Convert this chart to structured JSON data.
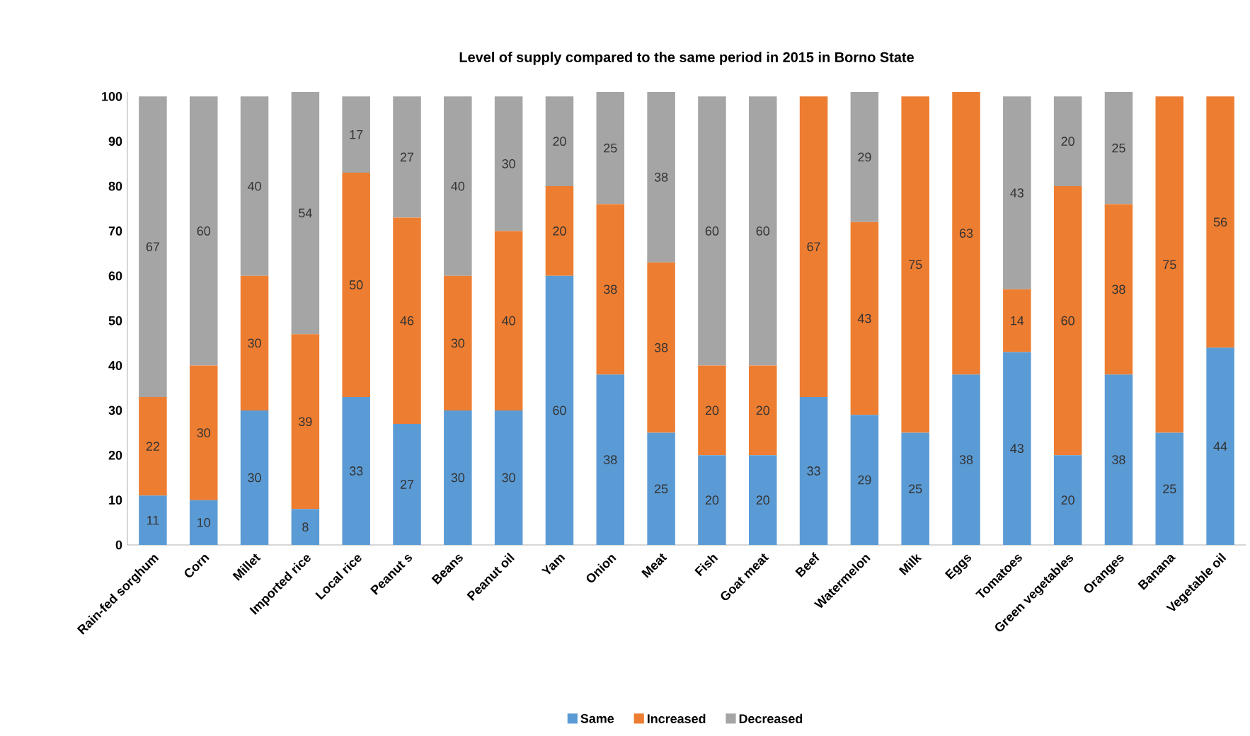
{
  "chart_data": {
    "type": "bar",
    "title": "Level of supply compared to the same period in 2015 in Borno State",
    "categories": [
      "Rain-fed sorghum",
      "Corn",
      "Millet",
      "Imported rice",
      "Local rice",
      "Peanut s",
      "Beans",
      "Peanut oil",
      "Yam",
      "Onion",
      "Meat",
      "Fish",
      "Goat meat",
      "Beef",
      "Watermelon",
      "Milk",
      "Eggs",
      "Tomatoes",
      "Green vegetables",
      "Oranges",
      "Banana",
      "Vegetable oil"
    ],
    "series": [
      {
        "name": "Same",
        "color": "#5b9bd5",
        "values": [
          11,
          10,
          30,
          8,
          33,
          27,
          30,
          30,
          60,
          38,
          25,
          20,
          20,
          33,
          29,
          25,
          38,
          43,
          20,
          38,
          25,
          44
        ]
      },
      {
        "name": "Increased",
        "color": "#ed7d31",
        "values": [
          22,
          30,
          30,
          39,
          50,
          46,
          30,
          40,
          20,
          38,
          38,
          20,
          20,
          67,
          43,
          75,
          63,
          14,
          60,
          38,
          75,
          56
        ]
      },
      {
        "name": "Decreased",
        "color": "#a5a5a5",
        "values": [
          67,
          60,
          40,
          54,
          17,
          27,
          40,
          30,
          20,
          25,
          38,
          60,
          60,
          null,
          29,
          null,
          null,
          43,
          20,
          25,
          null,
          null
        ]
      }
    ],
    "stacked": true,
    "data_labels": true,
    "legend": "bottom",
    "ylim": [
      0,
      101
    ],
    "yticks": [
      0,
      10,
      20,
      30,
      40,
      50,
      60,
      70,
      80,
      90,
      100
    ]
  }
}
